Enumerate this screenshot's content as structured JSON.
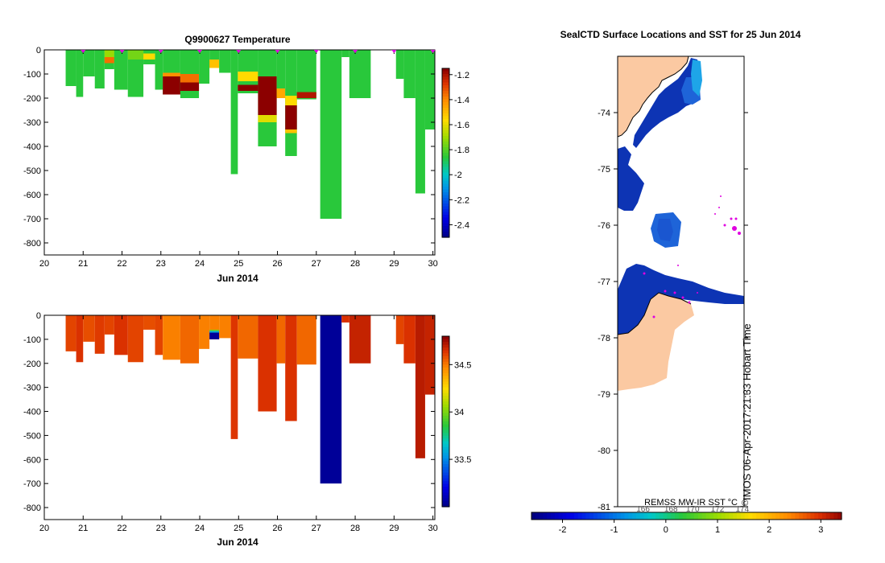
{
  "chart_data": [
    {
      "type": "heatmap",
      "title": "Q9900627  Temperature",
      "xlabel": "Jun 2014",
      "ylabel": "",
      "xlim": [
        20,
        30.05
      ],
      "ylim": [
        -850,
        0
      ],
      "xticks": [
        "20",
        "21",
        "22",
        "23",
        "24",
        "25",
        "26",
        "27",
        "28",
        "29",
        "30"
      ],
      "yticks": [
        "0",
        "-100",
        "-200",
        "-300",
        "-400",
        "-500",
        "-600",
        "-700",
        "-800"
      ],
      "colorbar": {
        "min": -2.5,
        "max": -1.15,
        "ticks": [
          "-1.2",
          "-1.4",
          "-1.6",
          "-1.8",
          "-2",
          "-2.2",
          "-2.4"
        ]
      },
      "profile_markers": [
        21,
        22,
        23,
        24,
        25,
        26,
        27,
        28,
        29,
        30
      ],
      "profiles": [
        {
          "x0": 20.55,
          "x1": 20.82,
          "depth": 150,
          "value": -1.85
        },
        {
          "x0": 20.82,
          "x1": 21.0,
          "depth": 195,
          "value": -1.85
        },
        {
          "x0": 21.0,
          "x1": 21.3,
          "depth": 110,
          "value": -1.85
        },
        {
          "x0": 21.3,
          "x1": 21.55,
          "depth": 160,
          "value": -1.85
        },
        {
          "x0": 21.55,
          "x1": 21.8,
          "depth": 80,
          "value": -1.85,
          "layers": [
            {
              "d0": 0,
              "d1": 30,
              "v": -1.7
            },
            {
              "d0": 30,
              "d1": 55,
              "v": -1.35
            }
          ]
        },
        {
          "x0": 21.8,
          "x1": 22.15,
          "depth": 165,
          "value": -1.85
        },
        {
          "x0": 22.15,
          "x1": 22.55,
          "depth": 195,
          "value": -1.85,
          "layers": [
            {
              "d0": 0,
              "d1": 40,
              "v": -1.75
            }
          ]
        },
        {
          "x0": 22.55,
          "x1": 22.85,
          "depth": 60,
          "value": -1.85,
          "layers": [
            {
              "d0": 15,
              "d1": 40,
              "v": -1.55
            }
          ]
        },
        {
          "x0": 22.85,
          "x1": 23.05,
          "depth": 165,
          "value": -1.85
        },
        {
          "x0": 23.05,
          "x1": 23.5,
          "depth": 185,
          "value": -1.85,
          "layers": [
            {
              "d0": 110,
              "d1": 185,
              "v": -1.15
            },
            {
              "d0": 95,
              "d1": 110,
              "v": -1.4
            }
          ]
        },
        {
          "x0": 23.5,
          "x1": 23.98,
          "depth": 200,
          "value": -1.85,
          "layers": [
            {
              "d0": 100,
              "d1": 135,
              "v": -1.35
            },
            {
              "d0": 135,
              "d1": 170,
              "v": -1.15
            }
          ]
        },
        {
          "x0": 23.98,
          "x1": 24.25,
          "depth": 140,
          "value": -1.85
        },
        {
          "x0": 24.25,
          "x1": 24.5,
          "depth": 75,
          "value": -1.85,
          "layers": [
            {
              "d0": 40,
              "d1": 75,
              "v": -1.5
            }
          ]
        },
        {
          "x0": 24.5,
          "x1": 24.8,
          "depth": 95,
          "value": -1.85
        },
        {
          "x0": 24.8,
          "x1": 24.98,
          "depth": 515,
          "value": -1.85
        },
        {
          "x0": 24.98,
          "x1": 25.5,
          "depth": 180,
          "value": -1.85,
          "layers": [
            {
              "d0": 90,
              "d1": 130,
              "v": -1.55
            },
            {
              "d0": 145,
              "d1": 170,
              "v": -1.15
            }
          ]
        },
        {
          "x0": 25.5,
          "x1": 25.98,
          "depth": 400,
          "value": -1.85,
          "layers": [
            {
              "d0": 110,
              "d1": 270,
              "v": -1.15
            },
            {
              "d0": 270,
              "d1": 300,
              "v": -1.6
            }
          ]
        },
        {
          "x0": 25.98,
          "x1": 26.2,
          "depth": 200,
          "value": -1.85,
          "layers": [
            {
              "d0": 160,
              "d1": 200,
              "v": -1.45
            }
          ]
        },
        {
          "x0": 26.2,
          "x1": 26.5,
          "depth": 440,
          "value": -1.85,
          "layers": [
            {
              "d0": 190,
              "d1": 230,
              "v": -1.55
            },
            {
              "d0": 230,
              "d1": 330,
              "v": -1.15
            },
            {
              "d0": 330,
              "d1": 345,
              "v": -1.5
            }
          ]
        },
        {
          "x0": 26.5,
          "x1": 27.0,
          "depth": 205,
          "value": -1.85,
          "layers": [
            {
              "d0": 175,
              "d1": 200,
              "v": -1.2
            }
          ]
        },
        {
          "x0": 27.1,
          "x1": 27.65,
          "depth": 700,
          "value": -1.85
        },
        {
          "x0": 27.65,
          "x1": 27.85,
          "depth": 30,
          "value": -1.85
        },
        {
          "x0": 27.85,
          "x1": 28.4,
          "depth": 200,
          "value": -1.85
        },
        {
          "x0": 29.05,
          "x1": 29.25,
          "depth": 120,
          "value": -1.85
        },
        {
          "x0": 29.25,
          "x1": 29.55,
          "depth": 200,
          "value": -1.85
        },
        {
          "x0": 29.55,
          "x1": 29.8,
          "depth": 595,
          "value": -1.85
        },
        {
          "x0": 29.8,
          "x1": 30.05,
          "depth": 330,
          "value": -1.85
        }
      ]
    },
    {
      "type": "heatmap",
      "title": "",
      "xlabel": "Jun 2014",
      "ylabel": "",
      "xlim": [
        20,
        30.05
      ],
      "ylim": [
        -850,
        0
      ],
      "xticks": [
        "20",
        "21",
        "22",
        "23",
        "24",
        "25",
        "26",
        "27",
        "28",
        "29",
        "30"
      ],
      "yticks": [
        "0",
        "-100",
        "-200",
        "-300",
        "-400",
        "-500",
        "-600",
        "-700",
        "-800"
      ],
      "colorbar": {
        "min": 33.0,
        "max": 34.8,
        "ticks": [
          "34.5",
          "34",
          "33.5"
        ]
      },
      "profiles": [
        {
          "x0": 20.55,
          "x1": 20.82,
          "depth": 150,
          "value": 34.62
        },
        {
          "x0": 20.82,
          "x1": 21.0,
          "depth": 195,
          "value": 34.66
        },
        {
          "x0": 21.0,
          "x1": 21.3,
          "depth": 110,
          "value": 34.6
        },
        {
          "x0": 21.3,
          "x1": 21.55,
          "depth": 160,
          "value": 34.64
        },
        {
          "x0": 21.55,
          "x1": 21.8,
          "depth": 80,
          "value": 34.62
        },
        {
          "x0": 21.8,
          "x1": 22.15,
          "depth": 165,
          "value": 34.66
        },
        {
          "x0": 22.15,
          "x1": 22.55,
          "depth": 195,
          "value": 34.62
        },
        {
          "x0": 22.55,
          "x1": 22.85,
          "depth": 60,
          "value": 34.6
        },
        {
          "x0": 22.85,
          "x1": 23.05,
          "depth": 165,
          "value": 34.62
        },
        {
          "x0": 23.05,
          "x1": 23.5,
          "depth": 185,
          "value": 34.5
        },
        {
          "x0": 23.5,
          "x1": 23.98,
          "depth": 200,
          "value": 34.55
        },
        {
          "x0": 23.98,
          "x1": 24.25,
          "depth": 140,
          "value": 34.5
        },
        {
          "x0": 24.25,
          "x1": 24.5,
          "depth": 100,
          "value": 34.5,
          "layers": [
            {
              "d0": 60,
              "d1": 65,
              "v": 34.0
            },
            {
              "d0": 65,
              "d1": 72,
              "v": 33.6
            },
            {
              "d0": 72,
              "d1": 100,
              "v": 33.05
            }
          ]
        },
        {
          "x0": 24.5,
          "x1": 24.8,
          "depth": 95,
          "value": 34.5
        },
        {
          "x0": 24.8,
          "x1": 24.98,
          "depth": 515,
          "value": 34.65
        },
        {
          "x0": 24.98,
          "x1": 25.5,
          "depth": 180,
          "value": 34.55
        },
        {
          "x0": 25.5,
          "x1": 25.98,
          "depth": 400,
          "value": 34.66
        },
        {
          "x0": 25.98,
          "x1": 26.2,
          "depth": 200,
          "value": 34.55
        },
        {
          "x0": 26.2,
          "x1": 26.5,
          "depth": 440,
          "value": 34.66
        },
        {
          "x0": 26.5,
          "x1": 27.0,
          "depth": 205,
          "value": 34.55
        },
        {
          "x0": 27.1,
          "x1": 27.65,
          "depth": 700,
          "value": 33.05
        },
        {
          "x0": 27.65,
          "x1": 27.85,
          "depth": 30,
          "value": 34.66
        },
        {
          "x0": 27.85,
          "x1": 28.4,
          "depth": 200,
          "value": 34.7
        },
        {
          "x0": 29.05,
          "x1": 29.25,
          "depth": 120,
          "value": 34.62
        },
        {
          "x0": 29.25,
          "x1": 29.55,
          "depth": 200,
          "value": 34.66
        },
        {
          "x0": 29.55,
          "x1": 29.8,
          "depth": 595,
          "value": 34.72
        },
        {
          "x0": 29.8,
          "x1": 30.05,
          "depth": 330,
          "value": 34.7
        }
      ]
    }
  ],
  "map": {
    "title": "SealCTD Surface Locations and SST for 25 Jun 2014",
    "yticks": [
      "-74",
      "-75",
      "-76",
      "-77",
      "-78",
      "-79",
      "-80",
      "-81"
    ],
    "credit": "IMOS 06-Apr-2017:21:33 Hobart Time",
    "source_label": "REMSS MW-IR SST °C",
    "colorbar": {
      "min": -2.6,
      "max": 3.4,
      "ticks": [
        "-2",
        "-1",
        "0",
        "1",
        "2",
        "3"
      ]
    },
    "contour_labels": [
      "166",
      "168",
      "170",
      "172",
      "174"
    ],
    "colors": {
      "land": "#fbc9a2",
      "cold_water": "#0d34b4",
      "mid_water": "#1e64d8",
      "light_water": "#1e9be6",
      "markers": "#e000e0"
    }
  }
}
